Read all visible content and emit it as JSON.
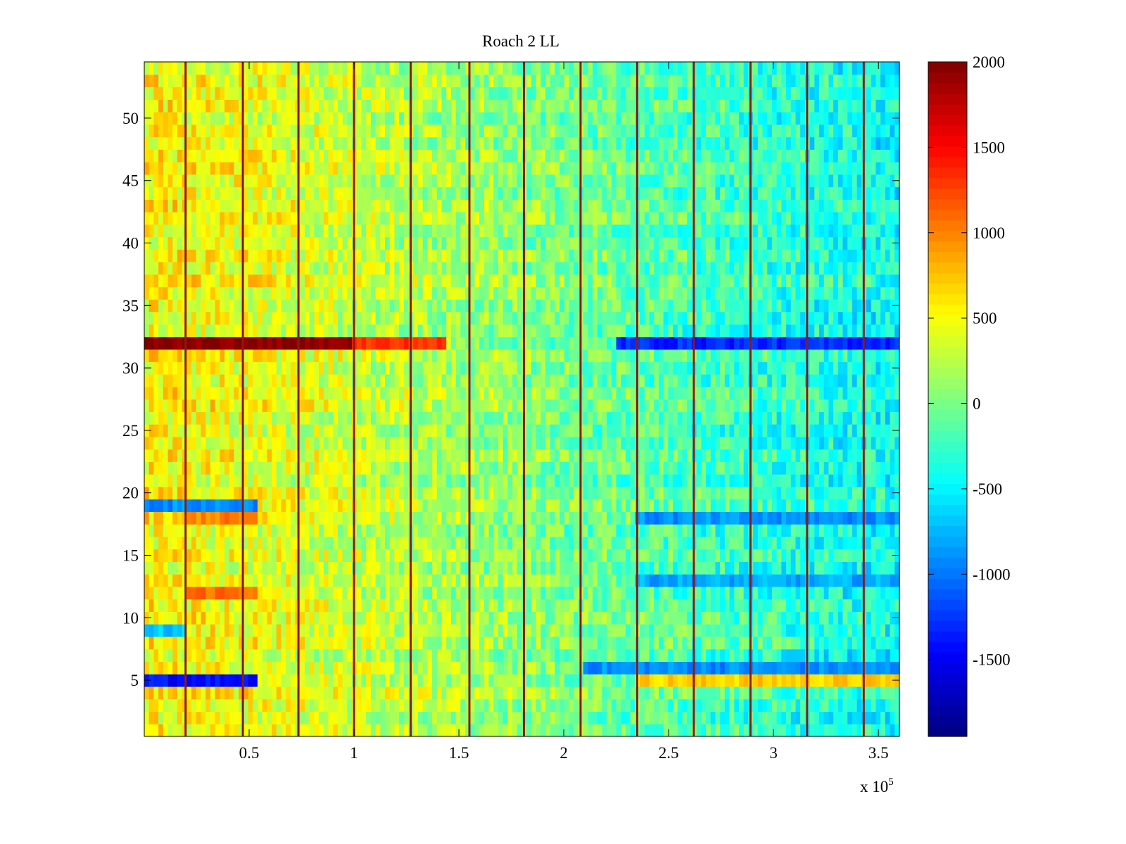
{
  "chart_data": {
    "type": "heatmap",
    "title": "Roach 2 LL",
    "xlabel": "",
    "ylabel": "",
    "x_multiplier_label": {
      "base": "x 10",
      "exponent": "5"
    },
    "xlim": [
      0,
      3.6
    ],
    "ylim": [
      0.5,
      54.5
    ],
    "x_ticks": [
      0.5,
      1,
      1.5,
      2,
      2.5,
      3,
      3.5
    ],
    "x_tick_labels": [
      "0.5",
      "1",
      "1.5",
      "2",
      "2.5",
      "3",
      "3.5"
    ],
    "y_ticks": [
      5,
      10,
      15,
      20,
      25,
      30,
      35,
      40,
      45,
      50
    ],
    "y_tick_labels": [
      "5",
      "10",
      "15",
      "20",
      "25",
      "30",
      "35",
      "40",
      "45",
      "50"
    ],
    "rows": 54,
    "colorbar": {
      "colormap": "jet",
      "clim": [
        -1950,
        2000
      ],
      "ticks": [
        -1500,
        -1000,
        -500,
        0,
        500,
        1000,
        1500,
        2000
      ],
      "tick_labels": [
        "-1500",
        "-1000",
        "-500",
        "0",
        "500",
        "1000",
        "1500",
        "2000"
      ]
    },
    "trend": {
      "x": [
        0,
        0.5,
        1.0,
        1.5,
        2.0,
        2.5,
        3.0,
        3.6
      ],
      "level": [
        550,
        450,
        300,
        150,
        0,
        -150,
        -300,
        -450
      ]
    },
    "row_features": [
      {
        "row": 32,
        "x_range": [
          0,
          1.0
        ],
        "value": 2000
      },
      {
        "row": 32,
        "x_range": [
          1.0,
          1.45
        ],
        "value": 1300
      },
      {
        "row": 32,
        "x_range": [
          2.25,
          3.6
        ],
        "value": -1300
      },
      {
        "row": 5,
        "x_range": [
          0,
          0.55
        ],
        "value": -1400
      },
      {
        "row": 5,
        "x_range": [
          2.35,
          3.6
        ],
        "value": 700
      },
      {
        "row": 6,
        "x_range": [
          2.1,
          3.6
        ],
        "value": -900
      },
      {
        "row": 19,
        "x_range": [
          0,
          0.55
        ],
        "value": -900
      },
      {
        "row": 18,
        "x_range": [
          0.2,
          0.55
        ],
        "value": 1000
      },
      {
        "row": 18,
        "x_range": [
          2.35,
          3.6
        ],
        "value": -900
      },
      {
        "row": 12,
        "x_range": [
          0.2,
          0.55
        ],
        "value": 1100
      },
      {
        "row": 13,
        "x_range": [
          2.35,
          3.6
        ],
        "value": -800
      },
      {
        "row": 9,
        "x_range": [
          0,
          0.2
        ],
        "value": -700
      }
    ],
    "vertical_stripes_x": [
      0.197,
      0.47,
      0.735,
      1.0,
      1.27,
      1.55,
      1.81,
      2.08,
      2.35,
      2.62,
      2.89,
      3.16,
      3.43
    ]
  }
}
